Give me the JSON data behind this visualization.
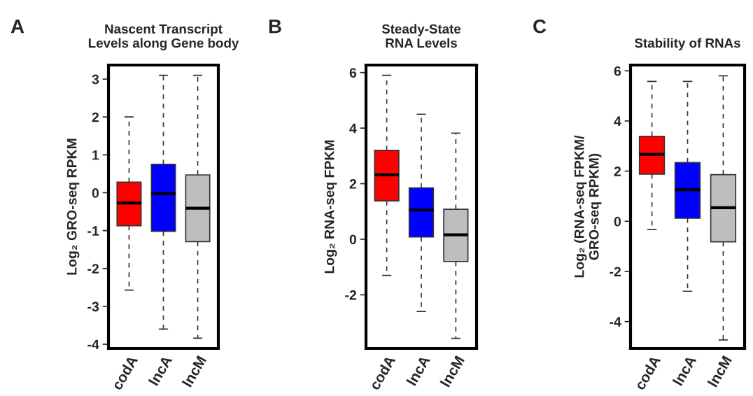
{
  "chart_data": [
    {
      "type": "box",
      "title": "Nascent Transcript\nLevels along Gene body",
      "ylabel": "Log₂ GRO-seq RPKM",
      "annotations": [
        "A"
      ],
      "categories": [
        "codA",
        "lncA",
        "lncM"
      ],
      "colors": [
        "#ff0000",
        "#0000ff",
        "#bebebe"
      ],
      "boxes": [
        {
          "low": -2.57,
          "q1": -0.87,
          "median": -0.27,
          "q3": 0.28,
          "high": 2.0
        },
        {
          "low": -3.6,
          "q1": -1.02,
          "median": -0.02,
          "q3": 0.75,
          "high": 3.1
        },
        {
          "low": -3.84,
          "q1": -1.29,
          "median": -0.41,
          "q3": 0.47,
          "high": 3.1
        }
      ],
      "ylim": [
        -4.11,
        3.37
      ],
      "yticks": [
        -4,
        -3,
        -2,
        -1,
        0,
        1,
        2,
        3
      ],
      "grid": false
    },
    {
      "type": "box",
      "title": "Steady-State\nRNA Levels",
      "ylabel": "Log₂ RNA-seq FPKM",
      "annotations": [
        "B"
      ],
      "categories": [
        "codA",
        "lncA",
        "lncM"
      ],
      "colors": [
        "#ff0000",
        "#0000ff",
        "#bebebe"
      ],
      "boxes": [
        {
          "low": -1.3,
          "q1": 1.38,
          "median": 2.32,
          "q3": 3.2,
          "high": 5.9
        },
        {
          "low": -2.6,
          "q1": 0.08,
          "median": 1.05,
          "q3": 1.85,
          "high": 4.5
        },
        {
          "low": -3.57,
          "q1": -0.8,
          "median": 0.16,
          "q3": 1.08,
          "high": 3.82
        }
      ],
      "ylim": [
        -3.93,
        6.27
      ],
      "yticks": [
        -2,
        0,
        2,
        4,
        6
      ],
      "grid": false
    },
    {
      "type": "box",
      "title": "Stability of RNAs",
      "ylabel": "Log₂ (RNA-seq FPKM/\nGRO-seq RPKM)",
      "annotations": [
        "C"
      ],
      "categories": [
        "codA",
        "lncA",
        "lncM"
      ],
      "colors": [
        "#ff0000",
        "#0000ff",
        "#bebebe"
      ],
      "boxes": [
        {
          "low": -0.33,
          "q1": 1.88,
          "median": 2.67,
          "q3": 3.39,
          "high": 5.58
        },
        {
          "low": -2.79,
          "q1": 0.12,
          "median": 1.26,
          "q3": 2.34,
          "high": 5.58
        },
        {
          "low": -4.73,
          "q1": -0.82,
          "median": 0.54,
          "q3": 1.86,
          "high": 5.8
        }
      ],
      "ylim": [
        -5.07,
        6.23
      ],
      "yticks": [
        -4,
        -2,
        0,
        2,
        4,
        6
      ],
      "grid": false
    }
  ]
}
